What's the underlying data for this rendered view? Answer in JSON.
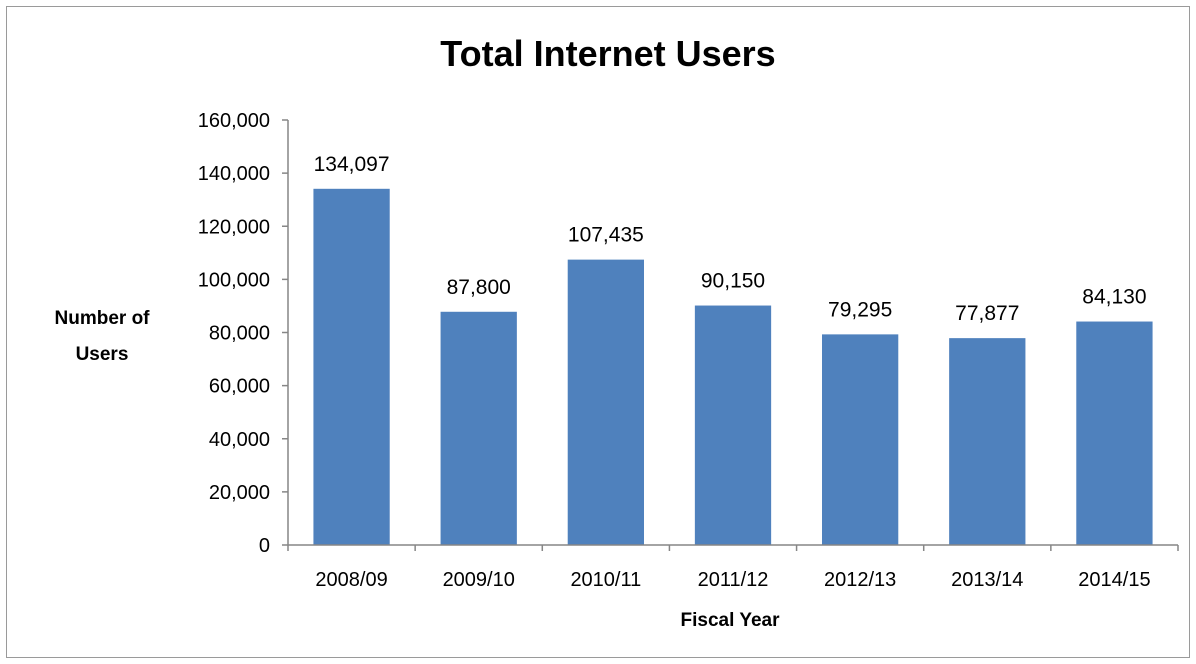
{
  "chart_data": {
    "type": "bar",
    "title": "Total Internet Users",
    "xlabel": "Fiscal Year",
    "ylabel": "Number of Users",
    "ylabel_lines": [
      "Number of",
      "Users"
    ],
    "categories": [
      "2008/09",
      "2009/10",
      "2010/11",
      "2011/12",
      "2012/13",
      "2013/14",
      "2014/15"
    ],
    "values": [
      134097,
      87800,
      107435,
      90150,
      79295,
      77877,
      84130
    ],
    "data_labels": [
      "134,097",
      "87,800",
      "107,435",
      "90,150",
      "79,295",
      "77,877",
      "84,130"
    ],
    "ylim": [
      0,
      160000
    ],
    "yticks": [
      0,
      20000,
      40000,
      60000,
      80000,
      100000,
      120000,
      140000,
      160000
    ],
    "ytick_labels": [
      "0",
      "20,000",
      "40,000",
      "60,000",
      "80,000",
      "100,000",
      "120,000",
      "140,000",
      "160,000"
    ],
    "bar_color": "#4f81bd",
    "grid": false,
    "legend": "none"
  }
}
